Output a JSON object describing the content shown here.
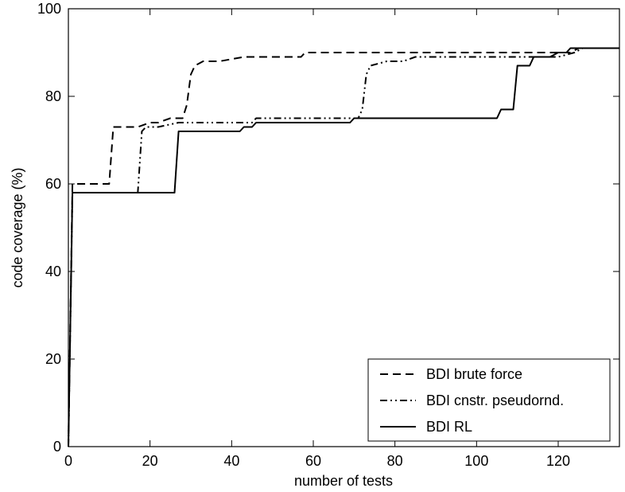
{
  "chart_data": {
    "type": "line",
    "title": "",
    "xlabel": "number of tests",
    "ylabel": "code coverage (%)",
    "xlim": [
      0,
      135
    ],
    "ylim": [
      0,
      100
    ],
    "xticks": [
      0,
      20,
      40,
      60,
      80,
      100,
      120
    ],
    "yticks": [
      0,
      20,
      40,
      60,
      80,
      100
    ],
    "grid": false,
    "legend_position": "bottom-right",
    "series": [
      {
        "name": "BDI brute force",
        "style": "dashed",
        "x": [
          0,
          1,
          10,
          11,
          17,
          20,
          22,
          25,
          28,
          29,
          30,
          31,
          33,
          37,
          43,
          50,
          57,
          58,
          60,
          70,
          80,
          90,
          100,
          110,
          120,
          123,
          125,
          130,
          135
        ],
        "y": [
          0,
          60,
          60,
          73,
          73,
          74,
          74,
          75,
          75,
          78,
          85,
          87,
          88,
          88,
          89,
          89,
          89,
          90,
          90,
          90,
          90,
          90,
          90,
          90,
          90,
          90,
          91,
          91,
          91
        ]
      },
      {
        "name": "BDI cnstr. pseudornd.",
        "style": "dashdot",
        "x": [
          0,
          1,
          10,
          17,
          18,
          19,
          22,
          27,
          35,
          45,
          46,
          55,
          65,
          71,
          72,
          73,
          74,
          78,
          82,
          85,
          90,
          100,
          110,
          120,
          124,
          126,
          130,
          135
        ],
        "y": [
          0,
          58,
          58,
          58,
          72,
          73,
          73,
          74,
          74,
          74,
          75,
          75,
          75,
          75,
          77,
          85,
          87,
          88,
          88,
          89,
          89,
          89,
          89,
          89,
          90,
          91,
          91,
          91
        ]
      },
      {
        "name": "BDI RL",
        "style": "solid",
        "x": [
          0,
          1,
          10,
          26,
          27,
          30,
          42,
          43,
          45,
          46,
          60,
          69,
          70,
          80,
          90,
          100,
          105,
          106,
          109,
          110,
          111,
          113,
          114,
          116,
          118,
          120,
          122,
          123,
          130,
          135
        ],
        "y": [
          0,
          58,
          58,
          58,
          72,
          72,
          72,
          73,
          73,
          74,
          74,
          74,
          75,
          75,
          75,
          75,
          75,
          77,
          77,
          87,
          87,
          87,
          89,
          89,
          89,
          90,
          90,
          91,
          91,
          91
        ]
      }
    ]
  }
}
